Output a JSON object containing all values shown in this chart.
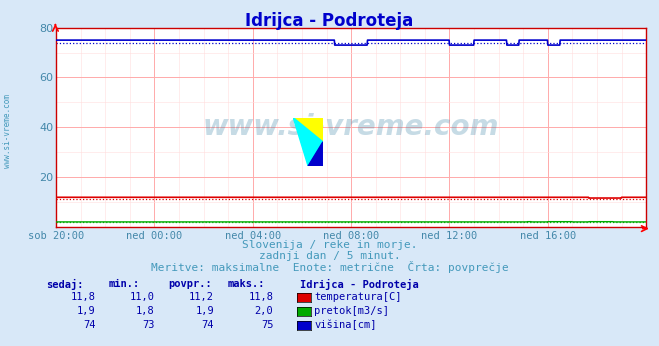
{
  "title": "Idrijca - Podroteja",
  "title_color": "#0000cc",
  "bg_color": "#d8e8f8",
  "plot_bg_color": "#ffffff",
  "grid_color_major": "#ffaaaa",
  "grid_color_minor": "#ffdddd",
  "axis_label_color": "#4488aa",
  "watermark_text": "www.si-vreme.com",
  "x_tick_labels": [
    "sob 20:00",
    "ned 00:00",
    "ned 04:00",
    "ned 08:00",
    "ned 12:00",
    "ned 16:00"
  ],
  "x_tick_positions": [
    0,
    240,
    480,
    720,
    960,
    1200
  ],
  "n_points": 1440,
  "ylim": [
    0,
    80
  ],
  "yticks": [
    20,
    40,
    60,
    80
  ],
  "temp_avg": 11.2,
  "temp_color": "#dd0000",
  "flow_avg": 1.9,
  "flow_color": "#00aa00",
  "height_avg": 74,
  "height_color": "#0000cc",
  "subtitle1": "Slovenija / reke in morje.",
  "subtitle2": "zadnji dan / 5 minut.",
  "subtitle3": "Meritve: maksimalne  Enote: metrične  Črta: povprečje",
  "subtitle_color": "#4499bb",
  "legend_title": "Idrijca - Podroteja",
  "table_color": "#0000aa",
  "border_color": "#cc0000",
  "table_header": [
    "sedaj:",
    "min.:",
    "povpr.:",
    "maks.:"
  ],
  "temp_value": "11,8",
  "temp_min": "11,0",
  "temp_max": "11,8",
  "temp_avg_str": "11,2",
  "flow_value": "1,9",
  "flow_min": "1,8",
  "flow_max": "2,0",
  "flow_avg_str": "1,9",
  "height_value": "74",
  "height_min": "73",
  "height_max": "75",
  "height_avg_str": "74",
  "temp_label": "temperatura[C]",
  "flow_label": "pretok[m3/s]",
  "height_label": "višina[cm]"
}
